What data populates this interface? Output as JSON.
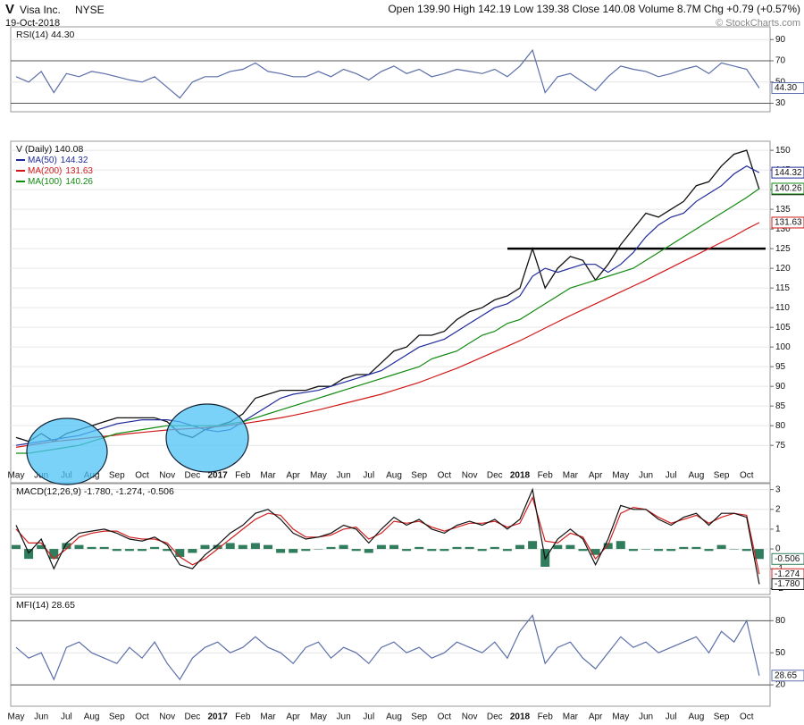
{
  "header": {
    "symbol": "V",
    "company": "Visa Inc.",
    "exchange": "NYSE",
    "date": "19-Oct-2018",
    "quote": "Open 139.90 High 142.19 Low 139.38 Close 140.08 Volume 8.7M Chg +0.79 (+0.57%)",
    "credit": "© StockCharts.com"
  },
  "chart_data": [
    {
      "type": "line",
      "title": "RSI(14) 44.30",
      "ylim": [
        22,
        102
      ],
      "yticks": [
        30,
        50,
        70,
        90
      ],
      "bands": [
        30,
        70
      ],
      "grid": true,
      "series": [
        {
          "color": "#5b6ea8",
          "last": 44.3,
          "last_label": "44.30",
          "values": [
            55,
            50,
            60,
            40,
            58,
            55,
            60,
            58,
            55,
            52,
            50,
            55,
            45,
            35,
            50,
            55,
            55,
            60,
            62,
            68,
            60,
            58,
            55,
            55,
            60,
            55,
            62,
            58,
            52,
            60,
            65,
            58,
            62,
            55,
            58,
            62,
            60,
            58,
            62,
            55,
            65,
            80,
            40,
            55,
            58,
            50,
            42,
            55,
            65,
            62,
            60,
            55,
            58,
            62,
            65,
            58,
            68,
            65,
            62,
            44.3
          ]
        }
      ]
    },
    {
      "type": "line",
      "title": "V (Daily) 140.08",
      "categories": [
        "May",
        null,
        "Jun",
        null,
        "Jul",
        null,
        "Aug",
        null,
        "Sep",
        null,
        "Oct",
        null,
        "Nov",
        null,
        "Dec",
        null,
        "2017",
        null,
        "Feb",
        null,
        "Mar",
        null,
        "Apr",
        null,
        "May",
        null,
        "Jun",
        null,
        "Jul",
        null,
        "Aug",
        null,
        "Sep",
        null,
        "Oct",
        null,
        "Nov",
        null,
        "Dec",
        null,
        "2018",
        null,
        "Feb",
        null,
        "Mar",
        null,
        "Apr",
        null,
        "May",
        null,
        "Jun",
        null,
        "Jul",
        null,
        "Aug",
        null,
        "Sep",
        null,
        "Oct",
        null
      ],
      "ylim": [
        65.5,
        152.3
      ],
      "yticks": [
        75,
        80,
        85,
        90,
        95,
        100,
        105,
        110,
        115,
        120,
        125,
        130,
        135,
        140,
        145,
        150
      ],
      "grid": true,
      "hline": 125,
      "series": [
        {
          "color": "#111111",
          "last": 140.08,
          "values": [
            77,
            76,
            78,
            76,
            78,
            79,
            80,
            81,
            82,
            82,
            82,
            82,
            81,
            78,
            77,
            79,
            80,
            81,
            83,
            87,
            88,
            89,
            89,
            89,
            90,
            90,
            92,
            93,
            93,
            96,
            99,
            100,
            103,
            103,
            104,
            107,
            109,
            110,
            112,
            113,
            115,
            125,
            115,
            120,
            123,
            122,
            117,
            121,
            126,
            130,
            134,
            133,
            135,
            137,
            141,
            142,
            146,
            149,
            150,
            140.08
          ]
        },
        {
          "name": "MA(50)",
          "color": "#1f2a9a",
          "last": 144.32,
          "values": [
            75,
            75.5,
            76,
            76.5,
            77,
            77.5,
            78.5,
            79.5,
            80.5,
            81,
            81.5,
            81.5,
            81.5,
            81,
            80,
            79,
            78.5,
            79,
            81,
            83,
            85,
            87,
            88,
            88.5,
            89,
            90,
            91,
            92,
            93,
            94,
            96,
            98,
            100,
            101,
            102,
            104,
            106,
            108,
            110,
            111,
            113,
            118,
            120,
            119,
            120,
            121,
            121,
            119,
            121,
            124,
            128,
            131,
            133,
            134,
            137,
            139,
            141,
            144,
            146,
            144.32
          ]
        },
        {
          "name": "MA(200)",
          "color": "#d01818",
          "last": 131.63,
          "values": [
            74.5,
            75,
            75.5,
            76,
            76.3,
            76.6,
            77,
            77.3,
            77.6,
            78,
            78.3,
            78.6,
            78.9,
            79.1,
            79.3,
            79.5,
            79.8,
            80.1,
            80.5,
            81,
            81.5,
            82,
            82.6,
            83.3,
            84,
            84.8,
            85.6,
            86.4,
            87.2,
            88,
            89,
            90,
            91,
            92.2,
            93.4,
            94.6,
            96,
            97.4,
            98.8,
            100.2,
            101.6,
            103.2,
            104.8,
            106.4,
            108,
            109.5,
            111,
            112.5,
            114,
            115.5,
            117,
            118.6,
            120.2,
            121.8,
            123.4,
            125,
            126.6,
            128.2,
            130,
            131.63
          ]
        },
        {
          "name": "MA(100)",
          "color": "#118a11",
          "last": 140.26,
          "values": [
            73,
            73,
            73.5,
            74,
            74.5,
            75,
            76,
            77,
            78,
            78.5,
            79,
            79.5,
            80,
            80,
            80,
            80,
            80,
            80.5,
            81,
            82,
            83,
            84,
            85,
            86,
            87,
            88,
            89,
            90,
            91,
            92,
            93,
            94,
            95,
            97,
            98,
            99,
            101,
            103,
            104,
            106,
            107,
            109,
            111,
            113,
            115,
            116,
            117,
            118,
            119,
            120,
            122,
            124,
            126,
            128,
            130,
            132,
            134,
            136,
            138,
            140.26
          ]
        }
      ]
    },
    {
      "type": "line",
      "title": "MACD(12,26,9) -1.780, -1.274, -0.506",
      "ylim": [
        -2.3,
        3.3
      ],
      "yticks": [
        -2,
        -1,
        0,
        1,
        2,
        3
      ],
      "grid": true,
      "series": [
        {
          "style": "histogram",
          "color": "#2f7d5d",
          "last": -0.506,
          "values": [
            0.2,
            -0.5,
            0.2,
            -0.5,
            0.3,
            0.2,
            0.1,
            0.1,
            -0.1,
            -0.1,
            -0.1,
            0.1,
            -0.1,
            -0.4,
            -0.2,
            0.2,
            0.2,
            0.3,
            0.2,
            0.3,
            0.2,
            -0.2,
            -0.2,
            -0.1,
            0,
            0.1,
            0.2,
            -0.1,
            -0.2,
            0.2,
            0.2,
            -0.1,
            0.1,
            -0.1,
            -0.1,
            0.1,
            0.1,
            -0.1,
            0.1,
            -0.1,
            0.2,
            0.4,
            -0.9,
            0.2,
            0.2,
            -0.1,
            -0.3,
            0.3,
            0.4,
            -0.1,
            0,
            -0.1,
            -0.1,
            0.1,
            0.1,
            -0.1,
            0.2,
            0,
            -0.1,
            -0.506
          ]
        },
        {
          "color": "#d02020",
          "last": -1.274,
          "values": [
            1,
            0.3,
            0.3,
            -0.5,
            0,
            0.6,
            0.8,
            0.9,
            0.9,
            0.6,
            0.5,
            0.5,
            0.3,
            -0.4,
            -0.8,
            -0.5,
            0,
            0.5,
            1,
            1.5,
            1.8,
            1.7,
            1,
            0.6,
            0.6,
            0.7,
            1,
            1.1,
            0.5,
            0.8,
            1.4,
            1.3,
            1.4,
            1.1,
            0.9,
            1.1,
            1.3,
            1.3,
            1.4,
            1.1,
            1.3,
            2.6,
            0.4,
            0.3,
            0.8,
            0.6,
            -0.5,
            0.2,
            1.8,
            2.1,
            2,
            1.6,
            1.3,
            1.5,
            1.7,
            1.3,
            1.6,
            1.8,
            1.7,
            -1.274
          ]
        },
        {
          "color": "#111111",
          "last": -1.78,
          "last_label": "-1.780",
          "values": [
            1.2,
            -0.2,
            0.5,
            -1,
            0.3,
            0.8,
            0.9,
            1,
            0.8,
            0.5,
            0.4,
            0.6,
            0.2,
            -0.8,
            -1,
            -0.3,
            0.2,
            0.8,
            1.2,
            1.8,
            2,
            1.5,
            0.8,
            0.5,
            0.6,
            0.8,
            1.2,
            1,
            0.3,
            1,
            1.6,
            1.2,
            1.5,
            1,
            0.8,
            1.2,
            1.4,
            1.2,
            1.5,
            1,
            1.5,
            3,
            -0.5,
            0.5,
            1,
            0.5,
            -0.8,
            0.5,
            2.2,
            2,
            2,
            1.5,
            1.2,
            1.6,
            1.8,
            1.2,
            1.8,
            1.8,
            1.6,
            -1.78
          ]
        }
      ]
    },
    {
      "type": "line",
      "title": "MFI(14) 28.65",
      "categories": [
        "May",
        null,
        "Jun",
        null,
        "Jul",
        null,
        "Aug",
        null,
        "Sep",
        null,
        "Oct",
        null,
        "Nov",
        null,
        "Dec",
        null,
        "2017",
        null,
        "Feb",
        null,
        "Mar",
        null,
        "Apr",
        null,
        "May",
        null,
        "Jun",
        null,
        "Jul",
        null,
        "Aug",
        null,
        "Sep",
        null,
        "Oct",
        null,
        "Nov",
        null,
        "Dec",
        null,
        "2018",
        null,
        "Feb",
        null,
        "Mar",
        null,
        "Apr",
        null,
        "May",
        null,
        "Jun",
        null,
        "Jul",
        null,
        "Aug",
        null,
        "Sep",
        null,
        "Oct",
        null
      ],
      "ylim": [
        0,
        102
      ],
      "yticks": [
        20,
        50,
        80
      ],
      "bands": [
        20,
        80
      ],
      "grid": true,
      "series": [
        {
          "color": "#5b6ea8",
          "last": 28.65,
          "values": [
            55,
            45,
            50,
            25,
            55,
            60,
            50,
            45,
            40,
            55,
            45,
            60,
            40,
            25,
            45,
            55,
            60,
            50,
            55,
            65,
            55,
            50,
            40,
            55,
            60,
            45,
            55,
            50,
            40,
            55,
            60,
            50,
            55,
            45,
            50,
            60,
            55,
            50,
            60,
            45,
            70,
            85,
            40,
            55,
            60,
            45,
            35,
            50,
            65,
            55,
            60,
            50,
            55,
            60,
            65,
            50,
            70,
            60,
            80,
            28.65
          ]
        }
      ]
    }
  ]
}
